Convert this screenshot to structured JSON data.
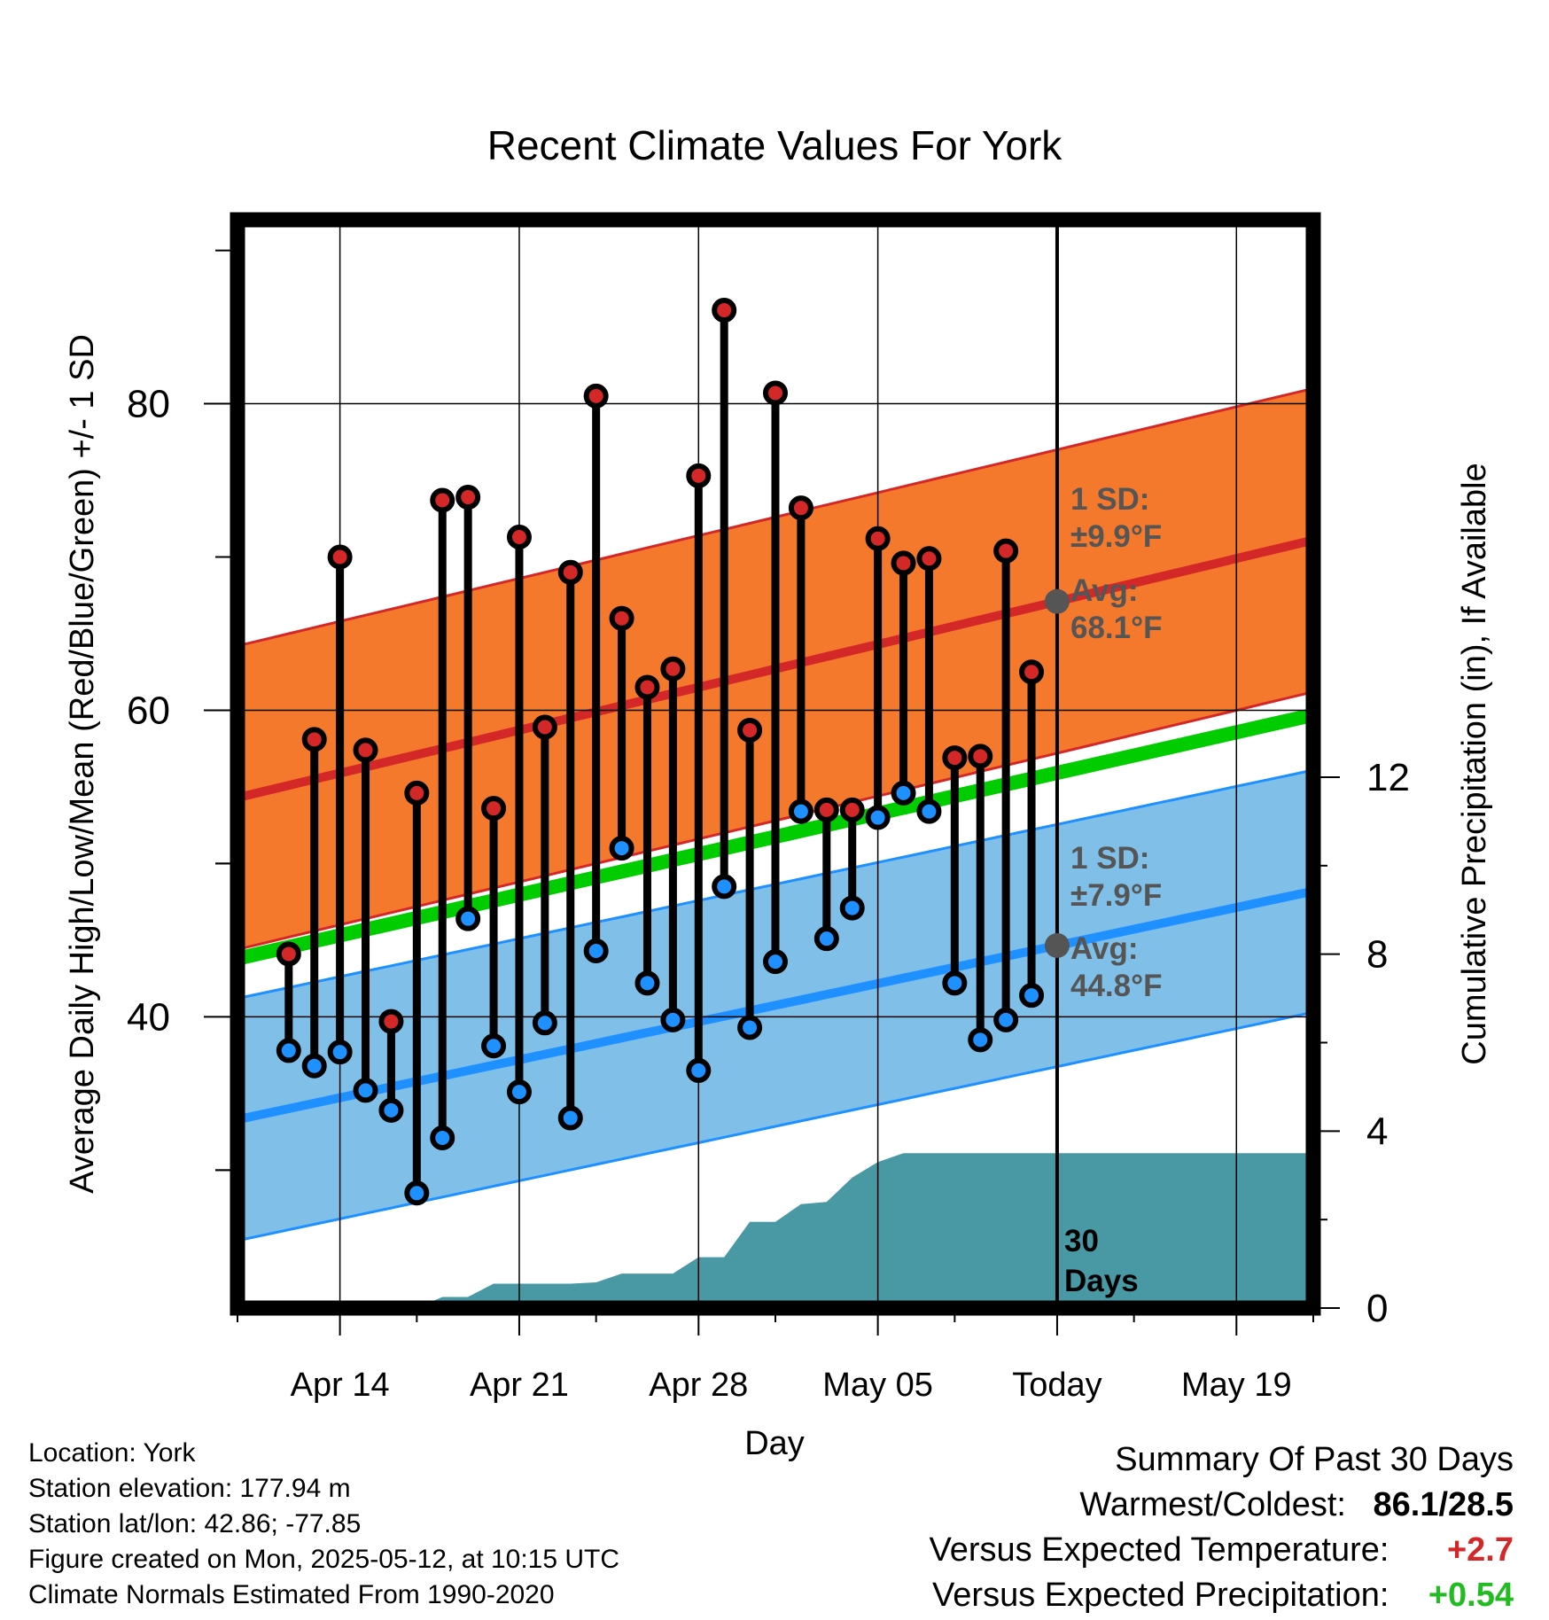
{
  "chart_data": {
    "type": "line",
    "title": "Recent Climate Values For York",
    "xlabel": "Day",
    "ylabel": "Average Daily High/Low/Mean (Red/Blue/Green) +/- 1 SD",
    "y2label": "Cumulative Precipitation (in), If Available",
    "x_ticks": [
      {
        "date": "2025-04-14",
        "label": "Apr 14"
      },
      {
        "date": "2025-04-21",
        "label": "Apr 21"
      },
      {
        "date": "2025-04-28",
        "label": "Apr 28"
      },
      {
        "date": "2025-05-05",
        "label": "May 05"
      },
      {
        "date": "2025-05-12",
        "label": "Today"
      },
      {
        "date": "2025-05-19",
        "label": "May 19"
      }
    ],
    "xlim": [
      "2025-04-10",
      "2025-05-22"
    ],
    "y_ticks": [
      40,
      60,
      80
    ],
    "ylim": [
      21,
      92
    ],
    "y2_ticks": [
      0,
      4,
      8,
      12
    ],
    "y2lim": [
      0,
      24.6
    ],
    "today": "2025-05-12",
    "dates": [
      "2025-04-12",
      "2025-04-13",
      "2025-04-14",
      "2025-04-15",
      "2025-04-16",
      "2025-04-17",
      "2025-04-18",
      "2025-04-19",
      "2025-04-20",
      "2025-04-21",
      "2025-04-22",
      "2025-04-23",
      "2025-04-24",
      "2025-04-25",
      "2025-04-26",
      "2025-04-27",
      "2025-04-28",
      "2025-04-29",
      "2025-04-30",
      "2025-05-01",
      "2025-05-02",
      "2025-05-03",
      "2025-05-04",
      "2025-05-05",
      "2025-05-06",
      "2025-05-07",
      "2025-05-08",
      "2025-05-09",
      "2025-05-10",
      "2025-05-11"
    ],
    "series": [
      {
        "name": "High",
        "color": "#d42727",
        "values": [
          44.1,
          58.1,
          70.0,
          57.4,
          39.7,
          54.6,
          73.7,
          73.9,
          53.6,
          71.3,
          58.9,
          69.0,
          80.5,
          66.0,
          61.5,
          62.7,
          75.3,
          86.1,
          58.7,
          80.7,
          73.2,
          53.5,
          53.5,
          71.2,
          69.6,
          69.9,
          56.9,
          57.0,
          70.4,
          62.5
        ]
      },
      {
        "name": "Low",
        "color": "#1e90ff",
        "values": [
          37.8,
          36.8,
          37.7,
          35.2,
          33.9,
          28.5,
          32.1,
          46.4,
          38.1,
          35.1,
          39.6,
          33.4,
          44.3,
          51.0,
          42.2,
          39.8,
          36.5,
          48.5,
          39.3,
          43.6,
          53.4,
          45.1,
          47.1,
          53.0,
          54.6,
          53.4,
          42.2,
          38.5,
          39.8,
          41.4
        ]
      }
    ],
    "normal_high": {
      "start": 54.3,
      "end": 71.1,
      "sd": 9.9
    },
    "normal_low": {
      "start": 33.3,
      "end": 48.2,
      "sd": 7.9
    },
    "normal_mean": {
      "start": 43.8,
      "end": 59.7
    },
    "precip_cumulative": {
      "dates": [
        "2025-04-17",
        "2025-04-18",
        "2025-04-19",
        "2025-04-20",
        "2025-04-21",
        "2025-04-22",
        "2025-04-23",
        "2025-04-24",
        "2025-04-25",
        "2025-04-26",
        "2025-04-27",
        "2025-04-28",
        "2025-04-29",
        "2025-04-30",
        "2025-05-01",
        "2025-05-02",
        "2025-05-03",
        "2025-05-04",
        "2025-05-05",
        "2025-05-06",
        "2025-05-07",
        "2025-05-08",
        "2025-05-09",
        "2025-05-10",
        "2025-05-11",
        "2025-05-12",
        "2025-05-22"
      ],
      "values": [
        0.0,
        0.25,
        0.25,
        0.55,
        0.55,
        0.55,
        0.55,
        0.58,
        0.78,
        0.78,
        0.78,
        1.15,
        1.15,
        1.95,
        1.95,
        2.35,
        2.4,
        2.95,
        3.3,
        3.5,
        3.5,
        3.5,
        3.5,
        3.5,
        3.5,
        3.5,
        3.5
      ]
    },
    "annotations": {
      "high_sd": "1 SD:",
      "high_sd_value": "±9.9°F",
      "high_avg": "Avg:",
      "high_avg_value": "68.1°F",
      "low_sd": "1 SD:",
      "low_sd_value": "±7.9°F",
      "low_avg": "Avg:",
      "low_avg_value": "44.8°F",
      "period_num": "30",
      "period_unit": "Days"
    },
    "colors": {
      "high_band": "#f4792c",
      "high_line": "#d42727",
      "low_band": "#80c0e8",
      "low_line": "#1e90ff",
      "mean_line": "#00cc00",
      "precip": "#4899a3",
      "annotation": "#555555"
    },
    "grid": true,
    "legend": "none"
  },
  "info": {
    "location": "Location: York",
    "elevation": "Station elevation: 177.94 m",
    "latlon": "Station lat/lon: 42.86; -77.85",
    "created": "Figure created on Mon, 2025-05-12, at 10:15 UTC",
    "normals": "Climate Normals Estimated From 1990-2020"
  },
  "summary": {
    "heading": "Summary Of Past 30 Days",
    "warm_cold_label": "Warmest/Coldest:",
    "warm_cold_value": "86.1/28.5",
    "temp_label": "Versus Expected Temperature:",
    "temp_value": "+2.7",
    "temp_color": "#d42727",
    "precip_label": "Versus Expected Precipitation:",
    "precip_value": "+0.54",
    "precip_color": "#22bb22"
  }
}
